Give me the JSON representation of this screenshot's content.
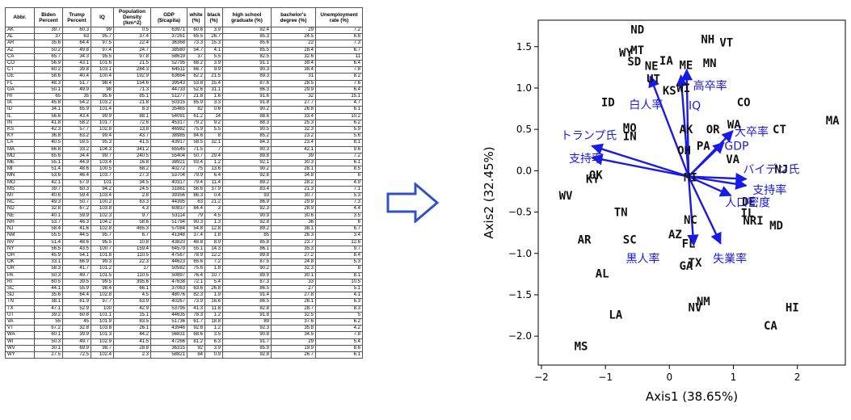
{
  "table": {
    "headers": [
      "Abbr.",
      "Biden Percent",
      "Trump Percent",
      "IQ",
      "Population Density (/km^2)",
      "GDP ($/capita)",
      "white (%)",
      "black (%)",
      "high school graduate (%)",
      "bachelor's degree (%)",
      "Unemployment rate (%)"
    ],
    "rows": [
      [
        "AK",
        "39.7",
        "60.3",
        "99",
        "0.5",
        "63971",
        "60.6",
        "3.9",
        "92.4",
        "29",
        "7.2"
      ],
      [
        "AL",
        "37",
        "63",
        "95.7",
        "37.4",
        "37261",
        "65.5",
        "26.7",
        "85.3",
        "24.5",
        "6.6"
      ],
      [
        "AR",
        "35.6",
        "64.4",
        "97.5",
        "22.4",
        "36368",
        "73.3",
        "15.3",
        "85.6",
        "22",
        "7.3"
      ],
      [
        "AZ",
        "50.2",
        "49.8",
        "97.4",
        "24.7",
        "38580",
        "54.7",
        "4.1",
        "85.5",
        "28.4",
        "6.7"
      ],
      [
        "CA",
        "65.7",
        "34.3",
        "95.5",
        "97.8",
        "58619",
        "37",
        "5.5",
        "82.5",
        "32.6",
        "11"
      ],
      [
        "CO",
        "56.9",
        "43.1",
        "101.6",
        "21.5",
        "52795",
        "68.2",
        "3.9",
        "91.1",
        "39.4",
        "6.4"
      ],
      [
        "CT",
        "60.2",
        "39.8",
        "103.1",
        "284.3",
        "64511",
        "66.7",
        "9.9",
        "90.3",
        "38.4",
        "7.8"
      ],
      [
        "DE",
        "58.6",
        "40.4",
        "100.4",
        "192.9",
        "63664",
        "62.2",
        "21.5",
        "89.3",
        "31",
        "8.2"
      ],
      [
        "FL",
        "48.3",
        "51.7",
        "98.4",
        "154.6",
        "39543",
        "53.8",
        "15.4",
        "87.6",
        "28.5",
        "7.6"
      ],
      [
        "GA",
        "50.1",
        "49.9",
        "98",
        "71.3",
        "44733",
        "52.6",
        "31.1",
        "86.3",
        "29.9",
        "6.4"
      ],
      [
        "HI",
        "65",
        "35",
        "95.6",
        "85.1",
        "51277",
        "21.8",
        "1.6",
        "91.6",
        "32",
        "15.1"
      ],
      [
        "IA",
        "45.8",
        "54.2",
        "103.2",
        "21.8",
        "50315",
        "85.9",
        "3.3",
        "91.8",
        "27.7",
        "4.7"
      ],
      [
        "ID",
        "34.1",
        "65.9",
        "101.4",
        "8.3",
        "35465",
        "82",
        "0.6",
        "90.2",
        "26.8",
        "6.1"
      ],
      [
        "IL",
        "56.6",
        "43.4",
        "99.9",
        "88.1",
        "54091",
        "61.2",
        "14",
        "88.6",
        "33.4",
        "10.2"
      ],
      [
        "IN",
        "41.8",
        "58.2",
        "101.7",
        "72.6",
        "45317",
        "79.2",
        "9.2",
        "88.3",
        "25.3",
        "6.2"
      ],
      [
        "KS",
        "42.3",
        "57.7",
        "102.8",
        "13.8",
        "46982",
        "75.9",
        "5.5",
        "90.5",
        "32.3",
        "5.9"
      ],
      [
        "KY",
        "36.8",
        "63.2",
        "99.4",
        "43.7",
        "38985",
        "84.6",
        "8",
        "85.2",
        "23.2",
        "5.6"
      ],
      [
        "LA",
        "40.5",
        "59.5",
        "95.3",
        "41.5",
        "43917",
        "58.5",
        "32.1",
        "84.3",
        "23.4",
        "8.1"
      ],
      [
        "MA",
        "66.8",
        "33.2",
        "104.3",
        "341.2",
        "65545",
        "71.5",
        "7",
        "90.3",
        "42.1",
        "9.6"
      ],
      [
        "MD",
        "65.6",
        "34.4",
        "99.7",
        "240.5",
        "55404",
        "50.7",
        "29.4",
        "89.8",
        "39",
        "7.2"
      ],
      [
        "ME",
        "55.1",
        "44.9",
        "103.4",
        "16.8",
        "38921",
        "93.4",
        "1.2",
        "92.1",
        "30.3",
        "6.1"
      ],
      [
        "MI",
        "51.4",
        "48.6",
        "100.5",
        "68.2",
        "40272",
        "75",
        "13.6",
        "90.2",
        "28.1",
        "8.5"
      ],
      [
        "MN",
        "53.6",
        "46.4",
        "103.7",
        "27.3",
        "53704",
        "79.9",
        "6.4",
        "92.8",
        "34.8",
        "6"
      ],
      [
        "MO",
        "42.1",
        "57.9",
        "101",
        "34.5",
        "40317",
        "79.4",
        "11.4",
        "89.2",
        "28.2",
        "4.9"
      ],
      [
        "MS",
        "39.7",
        "60.3",
        "94.2",
        "24.5",
        "31881",
        "56.6",
        "37.9",
        "83.4",
        "21.3",
        "7.1"
      ],
      [
        "MT",
        "40.6",
        "59.4",
        "103.4",
        "2.8",
        "39356",
        "86.3",
        "0.4",
        "93",
        "30.7",
        "5.3"
      ],
      [
        "NC",
        "49.3",
        "50.7",
        "100.2",
        "83.3",
        "44395",
        "63",
        "21.2",
        "86.9",
        "29.9",
        "7.3"
      ],
      [
        "ND",
        "32.8",
        "67.2",
        "103.8",
        "4.3",
        "60837",
        "84.4",
        "3",
        "92.3",
        "28.9",
        "4.4"
      ],
      [
        "NE",
        "40.1",
        "59.9",
        "102.3",
        "9.7",
        "53114",
        "79",
        "4.5",
        "90.9",
        "30.6",
        "3.5"
      ],
      [
        "NH",
        "53.7",
        "46.3",
        "104.2",
        "58.6",
        "51794",
        "90.3",
        "1.3",
        "92.8",
        "36",
        "6"
      ],
      [
        "NJ",
        "58.4",
        "41.6",
        "102.8",
        "465.3",
        "57084",
        "54.8",
        "12.8",
        "89.2",
        "38.1",
        "6.7"
      ],
      [
        "NM",
        "55.5",
        "44.5",
        "95.7",
        "6.7",
        "41348",
        "37.4",
        "1.8",
        "85",
        "26.3",
        "3.4"
      ],
      [
        "NV",
        "51.4",
        "48.6",
        "95.5",
        "10.8",
        "43820",
        "48.8",
        "8.9",
        "85.8",
        "23.7",
        "12.6"
      ],
      [
        "NY",
        "56.5",
        "43.5",
        "100.7",
        "159.4",
        "64579",
        "55.1",
        "14.3",
        "86.1",
        "35.3",
        "9.7"
      ],
      [
        "OH",
        "45.9",
        "54.1",
        "101.8",
        "110.5",
        "47567",
        "78.9",
        "12.2",
        "89.8",
        "27.2",
        "8.4"
      ],
      [
        "OK",
        "33.1",
        "66.9",
        "99.3",
        "22.3",
        "44623",
        "65.6",
        "7.2",
        "87.5",
        "24.8",
        "5.3"
      ],
      [
        "OR",
        "58.3",
        "41.7",
        "101.2",
        "17",
        "50582",
        "75.6",
        "1.8",
        "90.2",
        "32.3",
        "8"
      ],
      [
        "PA",
        "50.3",
        "49.7",
        "101.5",
        "110.5",
        "50897",
        "76.4",
        "10.7",
        "89.9",
        "30.1",
        "8.1"
      ],
      [
        "RI",
        "60.5",
        "39.5",
        "99.5",
        "395.6",
        "47638",
        "72.1",
        "5.4",
        "87.3",
        "33",
        "10.5"
      ],
      [
        "SC",
        "44.1",
        "55.9",
        "98.4",
        "66.1",
        "37063",
        "63.6",
        "26.8",
        "86.5",
        "27",
        "5.1"
      ],
      [
        "SD",
        "35.6",
        "64.4",
        "102.8",
        "4.5",
        "48076",
        "82.3",
        "1.9",
        "91.4",
        "27.8",
        "4.1"
      ],
      [
        "TN",
        "38.1",
        "61.9",
        "97.7",
        "63.9",
        "40267",
        "73.9",
        "16.6",
        "86.5",
        "26.1",
        "6.3"
      ],
      [
        "TX",
        "47.1",
        "52.9",
        "100",
        "42.9",
        "53795",
        "41.3",
        "11.8",
        "82.8",
        "28.7",
        "8.3"
      ],
      [
        "UT",
        "39.2",
        "60.8",
        "101.1",
        "15.1",
        "44635",
        "78.3",
        "1.2",
        "91.8",
        "32.5",
        "5"
      ],
      [
        "VA",
        "55",
        "45",
        "101.9",
        "83.5",
        "51736",
        "61.7",
        "18.8",
        "89",
        "37.6",
        "6.2"
      ],
      [
        "VT",
        "67.2",
        "32.8",
        "103.8",
        "26.1",
        "43946",
        "92.8",
        "1.2",
        "92.3",
        "35.8",
        "4.2"
      ],
      [
        "WA",
        "60.1",
        "39.9",
        "101.3",
        "44.2",
        "56831",
        "68.6",
        "3.5",
        "90.8",
        "34.5",
        "7.8"
      ],
      [
        "WI",
        "50.3",
        "49.7",
        "102.9",
        "41.5",
        "47266",
        "81.2",
        "6.3",
        "91.7",
        "29",
        "5.4"
      ],
      [
        "WV",
        "30.1",
        "69.9",
        "98.7",
        "28.8",
        "36315",
        "92",
        "3.9",
        "85.9",
        "19.9",
        "8.6"
      ],
      [
        "WY",
        "27.5",
        "72.5",
        "102.4",
        "2.3",
        "58821",
        "84",
        "0.9",
        "92.8",
        "26.7",
        "6.1"
      ]
    ]
  },
  "arrow_icon": "right-arrow-icon",
  "chart_data": {
    "type": "scatter",
    "title": "",
    "xlabel": "Axis1  (38.65%)",
    "ylabel": "Axis2  (32.45%)",
    "xlim": [
      -2.05,
      2.75
    ],
    "ylim": [
      -2.35,
      1.82
    ],
    "xticks": [
      -2,
      -1,
      0,
      1,
      2
    ],
    "xtick_labels": [
      "−2",
      "−1",
      "0",
      "1",
      "2"
    ],
    "yticks": [
      -2.0,
      -1.5,
      -1.0,
      -0.5,
      0.0,
      0.5,
      1.0,
      1.5
    ],
    "ytick_labels": [
      "−2.0",
      "−1.5",
      "−1.0",
      "−0.5",
      "0.0",
      "0.5",
      "1.0",
      "1.5"
    ],
    "grid": false,
    "points": [
      {
        "label": "ND",
        "x": -0.5,
        "y": 1.71
      },
      {
        "label": "NH",
        "x": 0.6,
        "y": 1.59
      },
      {
        "label": "VT",
        "x": 0.89,
        "y": 1.55
      },
      {
        "label": "WY",
        "x": -0.68,
        "y": 1.43
      },
      {
        "label": "MT",
        "x": -0.5,
        "y": 1.46
      },
      {
        "label": "SD",
        "x": -0.55,
        "y": 1.32
      },
      {
        "label": "IA",
        "x": -0.05,
        "y": 1.33
      },
      {
        "label": "NE",
        "x": -0.28,
        "y": 1.27
      },
      {
        "label": "ME",
        "x": 0.26,
        "y": 1.28
      },
      {
        "label": "MN",
        "x": 0.63,
        "y": 1.3
      },
      {
        "label": "UT",
        "x": -0.25,
        "y": 1.11
      },
      {
        "label": "WI",
        "x": 0.22,
        "y": 1.0
      },
      {
        "label": "KS",
        "x": 0.0,
        "y": 0.97
      },
      {
        "label": "ID",
        "x": -0.96,
        "y": 0.83
      },
      {
        "label": "CO",
        "x": 1.16,
        "y": 0.83
      },
      {
        "label": "MO",
        "x": -0.62,
        "y": 0.52
      },
      {
        "label": "IN",
        "x": -0.62,
        "y": 0.42
      },
      {
        "label": "AK",
        "x": 0.26,
        "y": 0.5
      },
      {
        "label": "OR",
        "x": 0.68,
        "y": 0.5
      },
      {
        "label": "WA",
        "x": 1.01,
        "y": 0.56
      },
      {
        "label": "CT",
        "x": 1.72,
        "y": 0.5
      },
      {
        "label": "MA",
        "x": 2.55,
        "y": 0.61
      },
      {
        "label": "OH",
        "x": 0.23,
        "y": 0.25
      },
      {
        "label": "PA",
        "x": 0.53,
        "y": 0.3
      },
      {
        "label": "VA",
        "x": 0.99,
        "y": 0.14
      },
      {
        "label": "OK",
        "x": -1.15,
        "y": -0.05
      },
      {
        "label": "KY",
        "x": -1.2,
        "y": -0.1
      },
      {
        "label": "MI",
        "x": 0.33,
        "y": -0.08
      },
      {
        "label": "NJ",
        "x": 1.75,
        "y": 0.02
      },
      {
        "label": "WV",
        "x": -1.62,
        "y": -0.3
      },
      {
        "label": "DE",
        "x": 1.24,
        "y": -0.37
      },
      {
        "label": "IL",
        "x": 1.22,
        "y": -0.51
      },
      {
        "label": "TN",
        "x": -0.76,
        "y": -0.5
      },
      {
        "label": "NC",
        "x": 0.33,
        "y": -0.59
      },
      {
        "label": "NRI",
        "x": 1.31,
        "y": -0.6
      },
      {
        "label": "MD",
        "x": 1.67,
        "y": -0.66
      },
      {
        "label": "AZ",
        "x": 0.09,
        "y": -0.77
      },
      {
        "label": "AR",
        "x": -1.33,
        "y": -0.83
      },
      {
        "label": "SC",
        "x": -0.62,
        "y": -0.83
      },
      {
        "label": "FL",
        "x": 0.3,
        "y": -0.88
      },
      {
        "label": "GA",
        "x": 0.26,
        "y": -1.15
      },
      {
        "label": "TX",
        "x": 0.4,
        "y": -1.11
      },
      {
        "label": "AL",
        "x": -1.05,
        "y": -1.24
      },
      {
        "label": "NM",
        "x": 0.53,
        "y": -1.58
      },
      {
        "label": "NV",
        "x": 0.4,
        "y": -1.65
      },
      {
        "label": "HI",
        "x": 1.92,
        "y": -1.65
      },
      {
        "label": "LA",
        "x": -0.84,
        "y": -1.74
      },
      {
        "label": "CA",
        "x": 1.58,
        "y": -1.87
      },
      {
        "label": "MS",
        "x": -1.38,
        "y": -2.12
      }
    ],
    "vectors": [
      {
        "label": "高卒率",
        "x": 0.27,
        "y": 1.22,
        "label_x": 0.37,
        "label_y": 1.03
      },
      {
        "label": "IQ",
        "x": 0.18,
        "y": 1.15,
        "label_x": 0.3,
        "label_y": 0.79
      },
      {
        "label": "白人率",
        "x": -0.3,
        "y": 1.14,
        "label_x": -0.63,
        "label_y": 0.8
      },
      {
        "label": "大卒率",
        "x": 0.99,
        "y": 0.48,
        "label_x": 1.02,
        "label_y": 0.47
      },
      {
        "label": "GDP",
        "x": 0.85,
        "y": 0.34,
        "label_x": 0.86,
        "label_y": 0.3
      },
      {
        "label": "トランプ氏",
        "x": -1.21,
        "y": 0.3,
        "label_x": -1.7,
        "label_y": 0.43
      },
      {
        "label": "支持率",
        "x": -1.21,
        "y": 0.16,
        "label_x": -1.57,
        "label_y": 0.15
      },
      {
        "label": "バイデン氏",
        "x": 1.2,
        "y": -0.1,
        "label_x": 1.15,
        "label_y": 0.02
      },
      {
        "label": "支持率",
        "x": 1.2,
        "y": -0.18,
        "label_x": 1.3,
        "label_y": -0.23
      },
      {
        "label": "人口密度",
        "x": 0.96,
        "y": -0.3,
        "label_x": 0.87,
        "label_y": -0.38
      },
      {
        "label": "失業率",
        "x": 0.8,
        "y": -0.88,
        "label_x": 0.68,
        "label_y": -1.06
      },
      {
        "label": "黒人率",
        "x": 0.38,
        "y": -0.9,
        "label_x": -0.68,
        "label_y": -1.06
      }
    ],
    "origin": {
      "x": 0.3,
      "y": -0.07
    },
    "colors": {
      "vector": "#1a1ae6",
      "point_text": "#111111",
      "axis": "#000000"
    }
  }
}
